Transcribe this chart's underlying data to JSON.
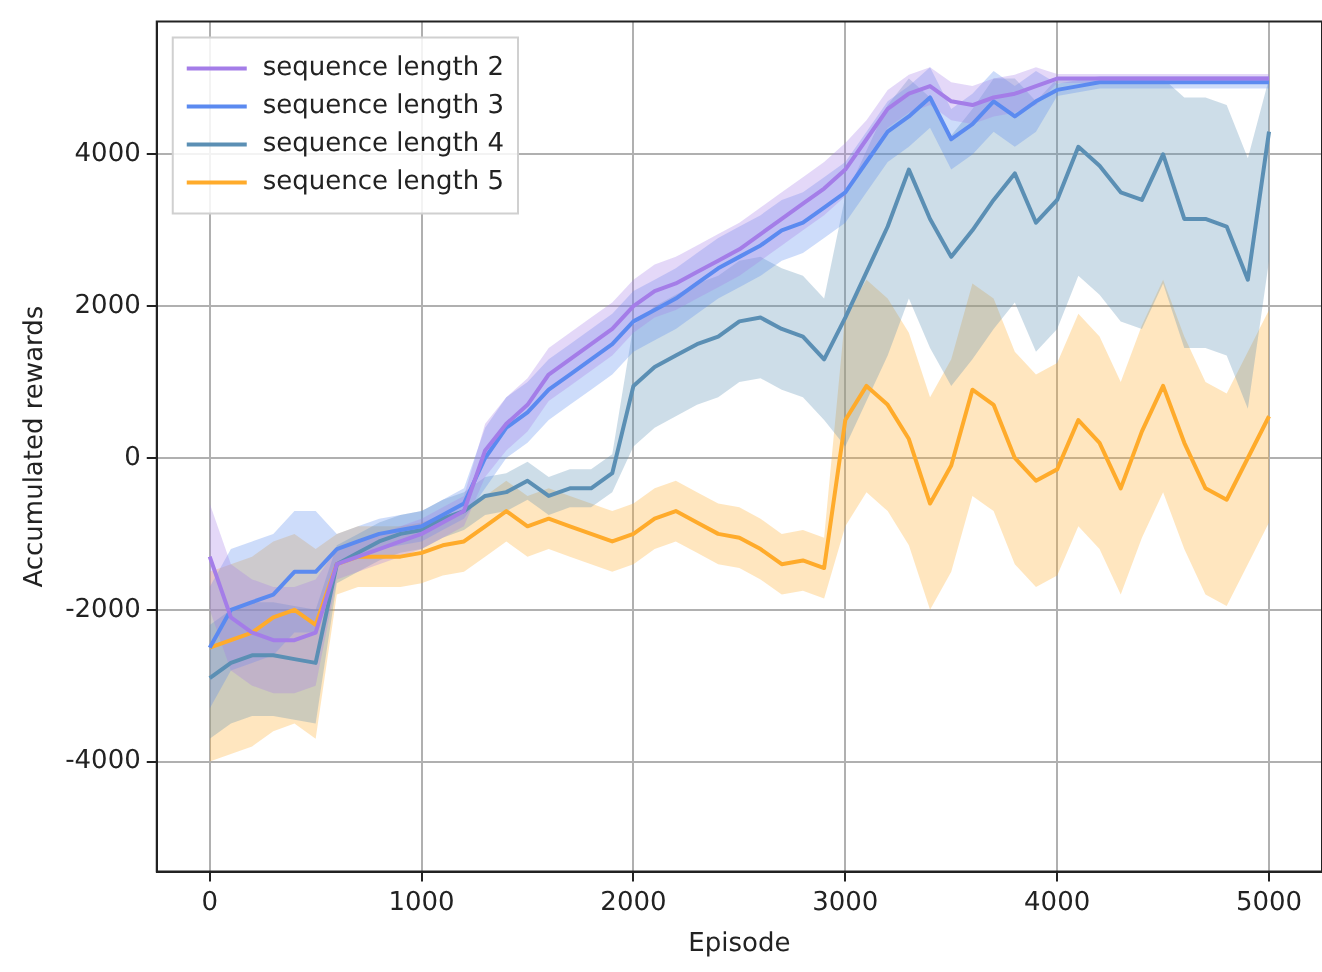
{
  "chart_data": {
    "type": "line",
    "xlabel": "Episode",
    "ylabel": "Accumulated rewards",
    "xlim": [
      -250,
      5250
    ],
    "ylim": [
      -5450,
      5750
    ],
    "xticks": [
      0,
      1000,
      2000,
      3000,
      4000,
      5000
    ],
    "yticks": [
      -4000,
      -2000,
      0,
      2000,
      4000
    ],
    "grid": true,
    "legend": "top left",
    "marker": "none",
    "line_style": "solid",
    "x": [
      0,
      100,
      200,
      300,
      400,
      500,
      600,
      700,
      800,
      900,
      1000,
      1100,
      1200,
      1300,
      1400,
      1500,
      1600,
      1700,
      1800,
      1900,
      2000,
      2100,
      2200,
      2300,
      2400,
      2500,
      2600,
      2700,
      2800,
      2900,
      3000,
      3100,
      3200,
      3300,
      3400,
      3500,
      3600,
      3700,
      3800,
      3900,
      4000,
      4100,
      4200,
      4300,
      4400,
      4500,
      4600,
      4700,
      4800,
      4900,
      5000
    ],
    "series": [
      {
        "name": "sequence length 2",
        "color": "#a47de8",
        "values": [
          -1300,
          -2100,
          -2300,
          -2400,
          -2400,
          -2300,
          -1400,
          -1300,
          -1200,
          -1100,
          -1000,
          -850,
          -700,
          100,
          450,
          700,
          1100,
          1300,
          1500,
          1700,
          2000,
          2200,
          2300,
          2450,
          2600,
          2750,
          2950,
          3150,
          3350,
          3550,
          3800,
          4200,
          4600,
          4800,
          4900,
          4700,
          4650,
          4750,
          4800,
          4900,
          5000,
          5000,
          5000,
          5000,
          5000,
          5000,
          5000,
          5000,
          5000,
          5000,
          5000
        ],
        "lower": [
          -2000,
          -2800,
          -3000,
          -3100,
          -3100,
          -3000,
          -1600,
          -1500,
          -1400,
          -1300,
          -1200,
          -1050,
          -900,
          -250,
          100,
          350,
          750,
          950,
          1150,
          1350,
          1650,
          1850,
          1950,
          2100,
          2250,
          2400,
          2600,
          2800,
          3000,
          3200,
          3450,
          3950,
          4350,
          4550,
          4650,
          4450,
          4400,
          4500,
          4550,
          4650,
          4940,
          4940,
          4940,
          4940,
          4940,
          4940,
          4940,
          4940,
          4940,
          4940,
          4940
        ],
        "upper": [
          -600,
          -1400,
          -1600,
          -1700,
          -1700,
          -1600,
          -1200,
          -1100,
          -1000,
          -900,
          -800,
          -650,
          -500,
          450,
          800,
          1050,
          1450,
          1650,
          1850,
          2050,
          2350,
          2550,
          2650,
          2800,
          2950,
          3100,
          3300,
          3500,
          3700,
          3900,
          4150,
          4450,
          4850,
          5050,
          5150,
          4950,
          4900,
          5000,
          5050,
          5150,
          5060,
          5060,
          5060,
          5060,
          5060,
          5060,
          5060,
          5060,
          5060,
          5060,
          5060
        ]
      },
      {
        "name": "sequence length 3",
        "color": "#5b8af0",
        "values": [
          -2500,
          -2000,
          -1900,
          -1800,
          -1500,
          -1500,
          -1200,
          -1100,
          -1000,
          -950,
          -900,
          -750,
          -600,
          0,
          400,
          600,
          900,
          1100,
          1300,
          1500,
          1800,
          1950,
          2100,
          2300,
          2500,
          2650,
          2800,
          3000,
          3100,
          3300,
          3500,
          3900,
          4300,
          4500,
          4750,
          4200,
          4400,
          4700,
          4500,
          4700,
          4850,
          4900,
          4950,
          4950,
          4950,
          4950,
          4950,
          4950,
          4950,
          4950,
          4950
        ],
        "lower": [
          -3300,
          -2800,
          -2700,
          -2600,
          -2300,
          -2300,
          -1400,
          -1300,
          -1200,
          -1150,
          -1100,
          -950,
          -800,
          -400,
          0,
          200,
          500,
          700,
          900,
          1100,
          1400,
          1550,
          1700,
          1900,
          2100,
          2250,
          2400,
          2600,
          2700,
          2900,
          3100,
          3500,
          3900,
          4100,
          4350,
          3800,
          4000,
          4300,
          4100,
          4300,
          4770,
          4820,
          4870,
          4870,
          4870,
          4870,
          4870,
          4870,
          4870,
          4870,
          4870
        ],
        "upper": [
          -1700,
          -1200,
          -1100,
          -1000,
          -700,
          -700,
          -1000,
          -900,
          -800,
          -750,
          -700,
          -550,
          -400,
          400,
          800,
          1000,
          1300,
          1500,
          1700,
          1900,
          2200,
          2350,
          2500,
          2700,
          2900,
          3050,
          3200,
          3400,
          3500,
          3700,
          3900,
          4300,
          4700,
          4900,
          5150,
          4600,
          4800,
          5100,
          4900,
          5100,
          4930,
          4980,
          5030,
          5030,
          5030,
          5030,
          5030,
          5030,
          5030,
          5030,
          5030
        ]
      },
      {
        "name": "sequence length 4",
        "color": "#5b8fb4",
        "values": [
          -2900,
          -2700,
          -2600,
          -2600,
          -2650,
          -2700,
          -1400,
          -1250,
          -1100,
          -1000,
          -950,
          -800,
          -700,
          -500,
          -450,
          -300,
          -500,
          -400,
          -400,
          -200,
          950,
          1200,
          1350,
          1500,
          1600,
          1800,
          1850,
          1700,
          1600,
          1300,
          1850,
          2450,
          3050,
          3800,
          3150,
          2650,
          3000,
          3400,
          3750,
          3100,
          3400,
          4100,
          3850,
          3500,
          3400,
          4000,
          3150,
          3150,
          3050,
          2350,
          4300
        ],
        "lower": [
          -3700,
          -3500,
          -3400,
          -3400,
          -3450,
          -3500,
          -1650,
          -1500,
          -1350,
          -1250,
          -1200,
          -1050,
          -950,
          -750,
          -700,
          -550,
          -750,
          -650,
          -650,
          -450,
          150,
          400,
          550,
          700,
          800,
          1000,
          1050,
          900,
          800,
          500,
          150,
          750,
          1350,
          2100,
          1450,
          950,
          1300,
          1700,
          2050,
          1400,
          1700,
          2400,
          2150,
          1800,
          1700,
          2300,
          1450,
          1450,
          1350,
          650,
          2600
        ],
        "upper": [
          -2200,
          -2000,
          -1900,
          -1900,
          -1950,
          -2000,
          -1150,
          -1000,
          -850,
          -750,
          -700,
          -550,
          -450,
          -250,
          -200,
          -50,
          -250,
          -150,
          -150,
          50,
          1750,
          2000,
          2150,
          2300,
          2400,
          2600,
          2650,
          2500,
          2400,
          2100,
          3450,
          4050,
          4650,
          5000,
          4750,
          4250,
          4600,
          5000,
          5000,
          4700,
          5000,
          5000,
          5000,
          5000,
          5000,
          5000,
          4750,
          4750,
          4650,
          3950,
          5000
        ]
      },
      {
        "name": "sequence length 5",
        "color": "#ffab2b",
        "values": [
          -2500,
          -2400,
          -2300,
          -2100,
          -2000,
          -2200,
          -1400,
          -1300,
          -1300,
          -1300,
          -1250,
          -1150,
          -1100,
          -900,
          -700,
          -900,
          -800,
          -900,
          -1000,
          -1100,
          -1000,
          -800,
          -700,
          -850,
          -1000,
          -1050,
          -1200,
          -1400,
          -1350,
          -1450,
          500,
          950,
          700,
          250,
          -600,
          -100,
          900,
          700,
          0,
          -300,
          -150,
          500,
          200,
          -400,
          350,
          950,
          200,
          -400,
          -550,
          0,
          550
        ],
        "lower": [
          -4000,
          -3900,
          -3800,
          -3600,
          -3500,
          -3700,
          -1800,
          -1700,
          -1700,
          -1700,
          -1650,
          -1550,
          -1500,
          -1300,
          -1100,
          -1300,
          -1200,
          -1300,
          -1400,
          -1500,
          -1400,
          -1200,
          -1100,
          -1250,
          -1400,
          -1450,
          -1600,
          -1800,
          -1750,
          -1850,
          -900,
          -450,
          -700,
          -1150,
          -2000,
          -1500,
          -500,
          -700,
          -1400,
          -1700,
          -1550,
          -900,
          -1200,
          -1800,
          -1050,
          -450,
          -1200,
          -1800,
          -1950,
          -1400,
          -850
        ],
        "upper": [
          -1500,
          -1400,
          -1300,
          -1100,
          -1000,
          -1200,
          -1000,
          -900,
          -900,
          -900,
          -850,
          -750,
          -700,
          -500,
          -300,
          -500,
          -400,
          -500,
          -600,
          -700,
          -600,
          -400,
          -300,
          -450,
          -600,
          -650,
          -800,
          -1000,
          -950,
          -1050,
          1900,
          2350,
          2100,
          1650,
          800,
          1300,
          2300,
          2100,
          1400,
          1100,
          1250,
          1900,
          1600,
          1000,
          1750,
          2350,
          1600,
          1000,
          850,
          1400,
          1950
        ]
      }
    ]
  }
}
